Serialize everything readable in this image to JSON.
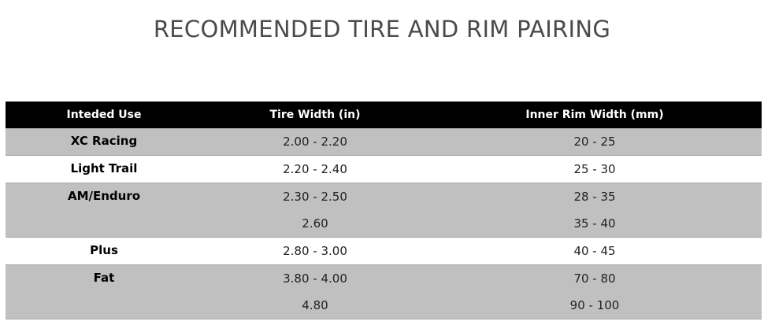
{
  "title": "RECOMMENDED TIRE AND RIM PAIRING",
  "table": {
    "headers": [
      "Inteded Use",
      "Tire Width (in)",
      "Inner Rim Width (mm)"
    ],
    "rows": [
      {
        "use": "XC Racing",
        "tire": "2.00 - 2.20",
        "rim": "20 - 25"
      },
      {
        "use": "Light Trail",
        "tire": "2.20 - 2.40",
        "rim": "25 - 30"
      },
      {
        "use": "AM/Enduro",
        "tire": "2.30 - 2.50",
        "rim": "28 - 35"
      },
      {
        "use": "",
        "tire": "2.60",
        "rim": "35 - 40"
      },
      {
        "use": "Plus",
        "tire": "2.80 - 3.00",
        "rim": "40 - 45"
      },
      {
        "use": "Fat",
        "tire": "3.80 - 4.00",
        "rim": "70 - 80"
      },
      {
        "use": "",
        "tire": "4.80",
        "rim": "90 - 100"
      }
    ]
  },
  "colors": {
    "header_bg": "#000000",
    "shaded_row": "#c0c0c0"
  }
}
